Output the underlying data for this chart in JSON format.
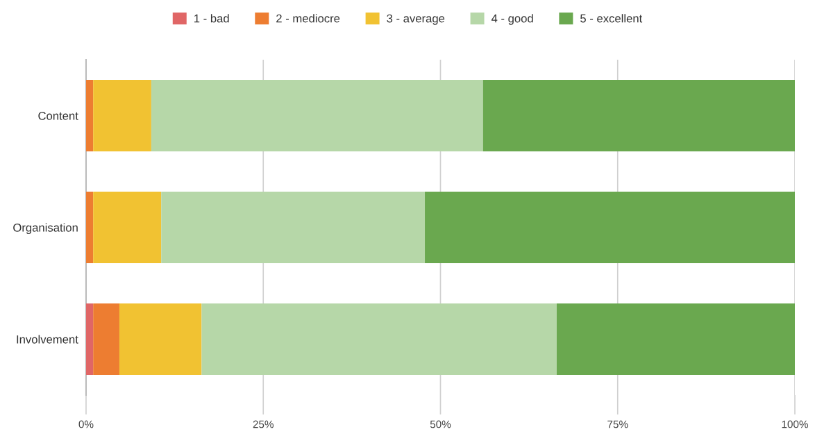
{
  "chart_data": {
    "type": "bar",
    "orientation": "horizontal",
    "stacked": true,
    "categories": [
      "Content",
      "Organisation",
      "Involvement"
    ],
    "series": [
      {
        "name": "1 - bad",
        "color": "#e06666",
        "values": [
          0,
          0,
          1.0
        ]
      },
      {
        "name": "2 - mediocre",
        "color": "#ed7d31",
        "values": [
          1.0,
          1.0,
          3.7
        ]
      },
      {
        "name": "3 - average",
        "color": "#f1c232",
        "values": [
          8.2,
          9.6,
          11.6
        ]
      },
      {
        "name": "4 - good",
        "color": "#b6d7a8",
        "values": [
          46.8,
          37.2,
          50.1
        ]
      },
      {
        "name": "5 - excellent",
        "color": "#6aa84f",
        "values": [
          44.0,
          52.2,
          33.6
        ]
      }
    ],
    "xlim": [
      0,
      100
    ],
    "xticks": [
      {
        "value": 0,
        "label": "0%"
      },
      {
        "value": 25,
        "label": "25%"
      },
      {
        "value": 50,
        "label": "50%"
      },
      {
        "value": 75,
        "label": "75%"
      },
      {
        "value": 100,
        "label": "100%"
      }
    ],
    "grid": "x",
    "legend": "top"
  }
}
